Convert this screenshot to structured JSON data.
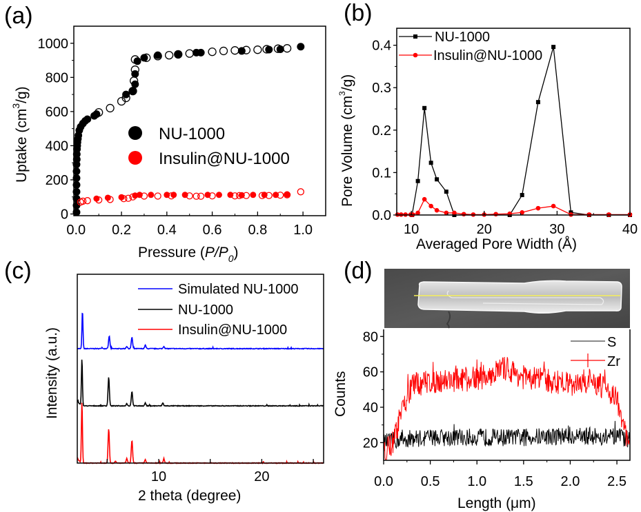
{
  "figure": {
    "panel_labels": [
      "(a)",
      "(b)",
      "(c)",
      "(d)"
    ]
  },
  "colors": {
    "nu1000": "#000000",
    "insulin": "#ff0000",
    "simulated": "#0000ff",
    "sem_line": "#f5f05a"
  },
  "chart_data": [
    {
      "panel": "(a)",
      "type": "scatter",
      "title": "",
      "xlabel": "Pressure (P/P0)",
      "xlabel_parts": {
        "prefix": "Pressure (",
        "italic1": "P",
        "sep": "/",
        "italic2": "P",
        "sub": "0",
        "suffix": ")"
      },
      "ylabel": "Uptake (cm3/g)",
      "ylabel_parts": {
        "prefix": "Uptake (cm",
        "sup": "3",
        "suffix": "/g)"
      },
      "xlim": [
        -0.01,
        1.1
      ],
      "ylim": [
        -10,
        1100
      ],
      "xticks": [
        0.0,
        0.2,
        0.4,
        0.6,
        0.8,
        1.0
      ],
      "xtick_labels": [
        "0.0",
        "0.2",
        "0.4",
        "0.6",
        "0.8",
        "1.0"
      ],
      "yticks": [
        0,
        200,
        400,
        600,
        800,
        1000
      ],
      "ytick_labels": [
        "0",
        "200",
        "400",
        "600",
        "800",
        "1000"
      ],
      "legend": {
        "placement": "center-right",
        "entries": [
          "NU-1000",
          "Insulin@NU-1000"
        ]
      },
      "series": [
        {
          "name": "NU-1000 adsorption",
          "color": "#000000",
          "filled": true,
          "x": [
            0.002,
            0.002,
            0.002,
            0.002,
            0.002,
            0.002,
            0.002,
            0.002,
            0.003,
            0.003,
            0.004,
            0.005,
            0.006,
            0.008,
            0.01,
            0.014,
            0.02,
            0.03,
            0.04,
            0.05,
            0.08,
            0.09,
            0.22,
            0.25,
            0.26,
            0.26,
            0.27,
            0.3,
            0.36,
            0.45,
            0.53,
            0.55,
            0.73,
            0.85,
            0.9,
            0.99
          ],
          "y": [
            10,
            50,
            90,
            130,
            170,
            210,
            250,
            290,
            320,
            350,
            380,
            400,
            420,
            440,
            460,
            490,
            510,
            530,
            545,
            555,
            575,
            585,
            700,
            720,
            760,
            820,
            895,
            915,
            930,
            935,
            945,
            945,
            955,
            963,
            965,
            980
          ]
        },
        {
          "name": "NU-1000 desorption",
          "color": "#000000",
          "filled": false,
          "x": [
            0.1,
            0.15,
            0.2,
            0.22,
            0.25,
            0.255,
            0.26,
            0.26,
            0.31,
            0.36,
            0.41,
            0.45,
            0.5,
            0.6,
            0.65,
            0.7,
            0.75,
            0.8,
            0.84,
            0.89,
            0.93
          ],
          "y": [
            595,
            620,
            660,
            680,
            720,
            780,
            845,
            905,
            915,
            925,
            930,
            935,
            940,
            950,
            955,
            958,
            960,
            962,
            965,
            968,
            970
          ]
        },
        {
          "name": "Insulin@NU-1000 adsorption",
          "color": "#ff0000",
          "filled": true,
          "x": [
            0.09,
            0.14,
            0.2,
            0.26,
            0.28,
            0.33,
            0.4,
            0.43,
            0.48,
            0.58,
            0.63,
            0.68,
            0.73,
            0.78,
            0.83,
            0.88,
            0.93
          ],
          "y": [
            90,
            95,
            98,
            108,
            112,
            112,
            112,
            112,
            112,
            112,
            112,
            112,
            110,
            112,
            112,
            112,
            115
          ]
        },
        {
          "name": "Insulin@NU-1000 desorption",
          "color": "#ff0000",
          "filled": false,
          "x": [
            0.02,
            0.03,
            0.05,
            0.1,
            0.15,
            0.21,
            0.23,
            0.25,
            0.3,
            0.36,
            0.42,
            0.5,
            0.53,
            0.55,
            0.6,
            0.7,
            0.72,
            0.75,
            0.82,
            0.85,
            0.9,
            0.93,
            0.99
          ],
          "y": [
            70,
            75,
            78,
            82,
            85,
            90,
            92,
            100,
            105,
            105,
            106,
            106,
            104,
            104,
            106,
            106,
            108,
            108,
            108,
            108,
            110,
            112,
            130
          ]
        }
      ]
    },
    {
      "panel": "(b)",
      "type": "line",
      "title": "",
      "xlabel": "Averaged Pore Width (Å)",
      "ylabel": "Pore Volume (cm3/g)",
      "ylabel_parts": {
        "prefix": "Pore Volume (cm",
        "sup": "3",
        "suffix": "/g)"
      },
      "xlim": [
        8,
        40
      ],
      "ylim": [
        0,
        0.44
      ],
      "xticks": [
        10,
        20,
        30,
        40
      ],
      "xtick_labels": [
        "10",
        "20",
        "30",
        "40"
      ],
      "yticks": [
        0.0,
        0.1,
        0.2,
        0.3,
        0.4
      ],
      "ytick_labels": [
        "0.0",
        "0.1",
        "0.2",
        "0.3",
        "0.4"
      ],
      "legend": {
        "placement": "top-left",
        "entries": [
          "NU-1000",
          "Insulin@NU-1000"
        ]
      },
      "series": [
        {
          "name": "NU-1000",
          "color": "#000000",
          "marker": "square",
          "x": [
            10.1,
            10.9,
            11.8,
            12.7,
            13.5,
            14.8,
            15.9,
            23.5,
            25.2,
            27.4,
            29.5,
            31.9,
            34.4,
            37.1,
            40
          ],
          "y": [
            0.0,
            0.08,
            0.252,
            0.123,
            0.084,
            0.055,
            0.0,
            0.0,
            0.047,
            0.266,
            0.396,
            0.006,
            0.0,
            0.0,
            0.0
          ]
        },
        {
          "name": "Insulin@NU-1000",
          "color": "#ff0000",
          "marker": "circle",
          "x": [
            8.1,
            8.6,
            9.2,
            9.9,
            10.2,
            10.9,
            11.8,
            12.7,
            13.5,
            14.8,
            15.9,
            17.2,
            18.5,
            20.0,
            21.6,
            23.5,
            25.2,
            27.4,
            29.5,
            31.9,
            34.4,
            37.1,
            40
          ],
          "y": [
            0.001,
            0.001,
            0.001,
            0.001,
            0.001,
            0.005,
            0.037,
            0.021,
            0.011,
            0.005,
            0.005,
            0.002,
            0.001,
            0.001,
            0.002,
            0.003,
            0.006,
            0.016,
            0.021,
            0.001,
            0.001,
            0.001,
            0.001
          ]
        }
      ]
    },
    {
      "panel": "(c)",
      "type": "line",
      "title": "",
      "xlabel": "2 theta (degree)",
      "ylabel": "Intensity (a.u.)",
      "xlim": [
        2.1,
        26
      ],
      "ylim": [
        0,
        3.3
      ],
      "xticks": [
        5,
        10,
        15,
        20,
        25
      ],
      "xtick_labels": [
        "",
        "10",
        "",
        "20",
        ""
      ],
      "yticks": [],
      "legend": {
        "placement": "top-right",
        "entries": [
          "Simulated NU-1000",
          "NU-1000",
          "Insulin@NU-1000"
        ]
      },
      "peaks_deg": [
        2.6,
        5.2,
        7.4,
        8.7,
        10.5
      ],
      "series": [
        {
          "name": "Simulated NU-1000",
          "color": "#0000ff",
          "offset": 2.0,
          "baseline": 0.0,
          "peaks": [
            {
              "x": 2.6,
              "h": 0.66
            },
            {
              "x": 5.2,
              "h": 0.22
            },
            {
              "x": 7.4,
              "h": 0.2
            },
            {
              "x": 8.7,
              "h": 0.06
            },
            {
              "x": 10.5,
              "h": 0.04
            },
            {
              "x": 6.9,
              "h": 0.04
            },
            {
              "x": 4.5,
              "h": 0.02
            }
          ]
        },
        {
          "name": "NU-1000",
          "color": "#000000",
          "offset": 1.0,
          "baseline": 0.0,
          "peaks": [
            {
              "x": 2.55,
              "h": 0.83
            },
            {
              "x": 5.15,
              "h": 0.5
            },
            {
              "x": 7.4,
              "h": 0.25
            },
            {
              "x": 8.7,
              "h": 0.05
            },
            {
              "x": 10.4,
              "h": 0.05
            },
            {
              "x": 6.9,
              "h": 0.04
            }
          ]
        },
        {
          "name": "Insulin@NU-1000",
          "color": "#ff0000",
          "offset": 0.0,
          "baseline": 0.0,
          "peaks": [
            {
              "x": 2.55,
              "h": 1.07
            },
            {
              "x": 5.15,
              "h": 0.6
            },
            {
              "x": 7.4,
              "h": 0.4
            },
            {
              "x": 8.7,
              "h": 0.06
            },
            {
              "x": 10.5,
              "h": 0.07
            },
            {
              "x": 6.9,
              "h": 0.08
            },
            {
              "x": 5.8,
              "h": 0.03
            }
          ]
        }
      ]
    },
    {
      "panel": "(d)",
      "type": "line",
      "title": "",
      "xlabel": "Length (μm)",
      "ylabel": "Counts",
      "xlim": [
        0,
        2.64
      ],
      "ylim": [
        10,
        84
      ],
      "xticks": [
        0.0,
        0.5,
        1.0,
        1.5,
        2.0,
        2.5
      ],
      "xtick_labels": [
        "0.0",
        "0.5",
        "1.0",
        "1.5",
        "2.0",
        "2.5"
      ],
      "yticks": [
        20,
        40,
        60,
        80
      ],
      "ytick_labels": [
        "20",
        "40",
        "60",
        "80"
      ],
      "legend": {
        "placement": "top-right",
        "entries": [
          "S",
          "Zr"
        ]
      },
      "inset": "SEM image of a rod-shaped NU-1000 crystal with a yellow line-scan path",
      "series": [
        {
          "name": "S",
          "color": "#000000",
          "mean": 23,
          "noise": 5,
          "profile": [
            [
              0.0,
              20
            ],
            [
              0.2,
              22
            ],
            [
              0.5,
              23
            ],
            [
              1.0,
              23
            ],
            [
              1.5,
              23
            ],
            [
              2.0,
              24
            ],
            [
              2.5,
              23
            ],
            [
              2.64,
              22
            ]
          ]
        },
        {
          "name": "Zr",
          "color": "#ff0000",
          "noise": 7,
          "profile": [
            [
              0.0,
              16
            ],
            [
              0.1,
              20
            ],
            [
              0.2,
              38
            ],
            [
              0.3,
              52
            ],
            [
              0.5,
              55
            ],
            [
              1.0,
              56
            ],
            [
              1.3,
              62
            ],
            [
              1.5,
              57
            ],
            [
              2.0,
              53
            ],
            [
              2.2,
              55
            ],
            [
              2.4,
              50
            ],
            [
              2.5,
              45
            ],
            [
              2.56,
              30
            ],
            [
              2.64,
              18
            ]
          ]
        }
      ]
    }
  ]
}
